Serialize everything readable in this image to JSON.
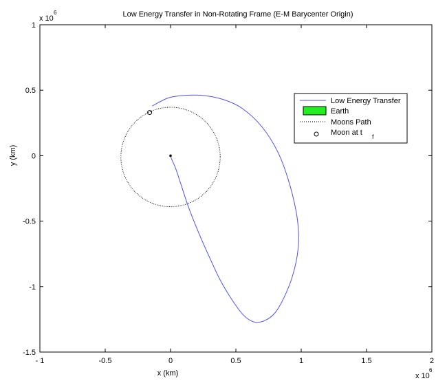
{
  "chart_data": {
    "type": "line",
    "title": "Low Energy Transfer in Non-Rotating Frame (E-M Barycenter Origin)",
    "xlabel": "x (km)",
    "ylabel": "y (km)",
    "x_exponent": "x 10",
    "x_exponent_power": "6",
    "y_exponent": "x 10",
    "y_exponent_power": "6",
    "xlim": [
      -1,
      2
    ],
    "ylim": [
      -1.5,
      1
    ],
    "x_scale": 1000000,
    "y_scale": 1000000,
    "xticks": [
      -1,
      -0.5,
      0,
      0.5,
      1,
      1.5,
      2
    ],
    "xtick_labels": [
      "- 1",
      "-0.5",
      "0",
      "0.5",
      "1",
      "1.5",
      "2"
    ],
    "yticks": [
      -1.5,
      -1,
      -0.5,
      0,
      0.5,
      1
    ],
    "ytick_labels": [
      "-1.5",
      "-1",
      "-0.5",
      "0",
      "0.5",
      "1"
    ],
    "grid": false,
    "legend_position": "top-right",
    "series": [
      {
        "name": "Low Energy Transfer",
        "style": "solid",
        "color": "#4f4ff0",
        "x": [
          -0.14,
          -0.02,
          0.1,
          0.25,
          0.4,
          0.55,
          0.7,
          0.82,
          0.9,
          0.96,
          0.98,
          0.97,
          0.93,
          0.87,
          0.8,
          0.72,
          0.64,
          0.56,
          0.47,
          0.38,
          0.3,
          0.22,
          0.14,
          0.08,
          0.04,
          0.01,
          0.0,
          0.002
        ],
        "y": [
          0.38,
          0.44,
          0.46,
          0.46,
          0.43,
          0.36,
          0.22,
          0.03,
          -0.18,
          -0.42,
          -0.6,
          -0.76,
          -0.93,
          -1.08,
          -1.2,
          -1.26,
          -1.27,
          -1.22,
          -1.1,
          -0.95,
          -0.78,
          -0.6,
          -0.4,
          -0.22,
          -0.1,
          -0.03,
          0.0,
          0.0
        ]
      },
      {
        "name": "Earth",
        "style": "filled",
        "color": "#22ee22",
        "x": [
          0.0
        ],
        "y": [
          0.0
        ]
      },
      {
        "name": "Moons Path",
        "style": "dotted",
        "color": "#000000",
        "center": [
          0.0,
          -0.01
        ],
        "radius": 0.38
      },
      {
        "name": "Moon at t",
        "name_subscript": "f",
        "style": "circle-marker",
        "color": "#000000",
        "x": [
          -0.16
        ],
        "y": [
          0.33
        ]
      }
    ]
  }
}
